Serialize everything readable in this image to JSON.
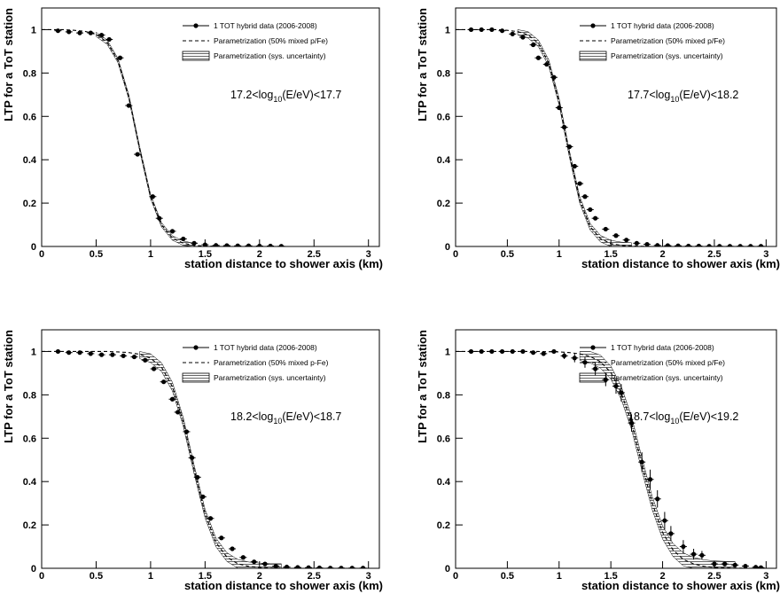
{
  "chart_data": [
    {
      "type": "line",
      "xlabel": "station distance to shower axis (km)",
      "ylabel": "LTP for a ToT station",
      "xlim": [
        0,
        3.1
      ],
      "ylim": [
        0,
        1.1
      ],
      "xticks": [
        0,
        0.5,
        1,
        1.5,
        2,
        2.5,
        3
      ],
      "yticks": [
        0,
        0.2,
        0.4,
        0.6,
        0.8,
        1
      ],
      "legend": "top-right",
      "annotation": {
        "pre": "17.2<log",
        "sub": "10",
        "post": "(E/eV)<17.7"
      },
      "series": [
        {
          "name": "1 TOT hybrid data (2006-2008)",
          "style": "markers",
          "color": "#000000",
          "x": [
            0.15,
            0.25,
            0.35,
            0.45,
            0.55,
            0.62,
            0.72,
            0.8,
            0.88,
            1.02,
            1.08,
            1.2,
            1.3,
            1.4,
            1.5,
            1.6,
            1.7,
            1.8,
            1.9,
            2.0,
            2.1,
            2.2
          ],
          "values": [
            0.995,
            0.99,
            0.985,
            0.985,
            0.975,
            0.955,
            0.87,
            0.65,
            0.425,
            0.23,
            0.13,
            0.07,
            0.035,
            0.015,
            0.008,
            0.005,
            0.004,
            0.003,
            0.003,
            0.002,
            0.002,
            0.001
          ]
        },
        {
          "name": "Parametrization (50% mixed p/Fe)",
          "style": "dashed",
          "color": "#000000",
          "x": [
            0,
            0.1,
            0.2,
            0.3,
            0.4,
            0.5,
            0.6,
            0.7,
            0.8,
            0.9,
            1.0,
            1.1,
            1.2,
            1.3,
            1.4,
            1.5,
            1.6,
            1.7,
            1.8,
            1.9,
            2.0,
            2.1,
            2.2,
            2.3,
            2.4,
            2.5,
            2.6,
            2.7,
            2.8,
            2.9,
            3.0
          ],
          "values": [
            1,
            1,
            1,
            0.997,
            0.992,
            0.978,
            0.943,
            0.858,
            0.69,
            0.45,
            0.23,
            0.1,
            0.039,
            0.015,
            0.005,
            0.002,
            0.001,
            0,
            0,
            0,
            0,
            0,
            0,
            0,
            0,
            0,
            0,
            0,
            0,
            0,
            0
          ]
        },
        {
          "name": "Parametrization (sys. uncertainty)",
          "style": "hatched",
          "color": "#000000",
          "x": [
            0.5,
            0.6,
            0.7,
            0.8,
            0.9,
            1.0,
            1.1,
            1.2,
            1.3,
            1.4
          ],
          "lower": [
            0.968,
            0.933,
            0.848,
            0.68,
            0.44,
            0.22,
            0.09,
            0.029,
            0.005,
            0
          ],
          "upper": [
            0.988,
            0.953,
            0.868,
            0.7,
            0.46,
            0.24,
            0.11,
            0.049,
            0.025,
            0.015
          ]
        }
      ]
    },
    {
      "type": "line",
      "xlabel": "station distance to shower axis (km)",
      "ylabel": "LTP for a ToT station",
      "xlim": [
        0,
        3.1
      ],
      "ylim": [
        0,
        1.1
      ],
      "xticks": [
        0,
        0.5,
        1,
        1.5,
        2,
        2.5,
        3
      ],
      "yticks": [
        0,
        0.2,
        0.4,
        0.6,
        0.8,
        1
      ],
      "legend": "top-right",
      "annotation": {
        "pre": "17.7<log",
        "sub": "10",
        "post": "(E/eV)<18.2"
      },
      "series": [
        {
          "name": "1 TOT hybrid data (2006-2008)",
          "style": "markers",
          "color": "#000000",
          "x": [
            0.15,
            0.25,
            0.35,
            0.45,
            0.55,
            0.65,
            0.75,
            0.8,
            0.88,
            0.95,
            1.0,
            1.05,
            1.1,
            1.15,
            1.2,
            1.25,
            1.3,
            1.35,
            1.45,
            1.55,
            1.65,
            1.75,
            1.85,
            1.95,
            2.05,
            2.15,
            2.25,
            2.35,
            2.45,
            2.55,
            2.65,
            2.75,
            2.85,
            2.95
          ],
          "values": [
            1,
            1,
            1,
            0.995,
            0.98,
            0.965,
            0.93,
            0.87,
            0.84,
            0.78,
            0.64,
            0.55,
            0.46,
            0.37,
            0.29,
            0.23,
            0.17,
            0.13,
            0.08,
            0.05,
            0.03,
            0.015,
            0.01,
            0.005,
            0.004,
            0.003,
            0.002,
            0.002,
            0.001,
            0.001,
            0.001,
            0.001,
            0.001,
            0.001
          ]
        },
        {
          "name": "Parametrization (50% mixed p/Fe)",
          "style": "dashed",
          "color": "#000000",
          "x": [
            0,
            0.1,
            0.2,
            0.3,
            0.4,
            0.5,
            0.6,
            0.7,
            0.8,
            0.9,
            1.0,
            1.1,
            1.2,
            1.3,
            1.4,
            1.5,
            1.6,
            1.7,
            1.8,
            1.9,
            2.0,
            2.1,
            2.2,
            2.3,
            2.4,
            2.5,
            2.6,
            2.7,
            2.8,
            2.9,
            3.0
          ],
          "values": [
            1,
            1,
            1,
            1,
            1,
            0.997,
            0.991,
            0.976,
            0.937,
            0.846,
            0.668,
            0.426,
            0.214,
            0.091,
            0.036,
            0.013,
            0.005,
            0.002,
            0.001,
            0,
            0,
            0,
            0,
            0,
            0,
            0,
            0,
            0,
            0,
            0,
            0
          ]
        },
        {
          "name": "Parametrization (sys. uncertainty)",
          "style": "hatched",
          "color": "#000000",
          "x": [
            0.6,
            0.7,
            0.8,
            0.9,
            1.0,
            1.1,
            1.2,
            1.3,
            1.4,
            1.5,
            1.6,
            1.7
          ],
          "lower": [
            0.976,
            0.961,
            0.922,
            0.831,
            0.653,
            0.411,
            0.199,
            0.076,
            0.021,
            0,
            0,
            0
          ],
          "upper": [
            1,
            0.991,
            0.952,
            0.861,
            0.683,
            0.441,
            0.229,
            0.106,
            0.051,
            0.028,
            0.02,
            0.017
          ]
        }
      ]
    },
    {
      "type": "line",
      "xlabel": "station distance to shower axis (km)",
      "ylabel": "LTP for a ToT station",
      "xlim": [
        0,
        3.1
      ],
      "ylim": [
        0,
        1.1
      ],
      "xticks": [
        0,
        0.5,
        1,
        1.5,
        2,
        2.5,
        3
      ],
      "yticks": [
        0,
        0.2,
        0.4,
        0.6,
        0.8,
        1
      ],
      "legend": "top-right",
      "annotation": {
        "pre": "18.2<log",
        "sub": "10",
        "post": "(E/eV)<18.7"
      },
      "series": [
        {
          "name": "1 TOT hybrid data (2006-2008)",
          "style": "markers",
          "color": "#000000",
          "x": [
            0.15,
            0.25,
            0.35,
            0.45,
            0.55,
            0.65,
            0.75,
            0.85,
            0.95,
            1.03,
            1.12,
            1.2,
            1.25,
            1.33,
            1.38,
            1.43,
            1.48,
            1.55,
            1.65,
            1.75,
            1.85,
            1.95,
            2.05,
            2.15,
            2.25,
            2.35,
            2.45,
            2.55,
            2.65,
            2.75,
            2.85,
            2.95
          ],
          "values": [
            1,
            0.995,
            0.995,
            0.99,
            0.985,
            0.985,
            0.98,
            0.975,
            0.96,
            0.92,
            0.86,
            0.78,
            0.72,
            0.63,
            0.51,
            0.42,
            0.33,
            0.23,
            0.14,
            0.09,
            0.05,
            0.03,
            0.02,
            0.01,
            0.006,
            0.004,
            0.003,
            0.002,
            0.001,
            0.001,
            0.001,
            0.001
          ]
        },
        {
          "name": "Parametrization (50% mixed p-Fe)",
          "style": "dashed",
          "color": "#000000",
          "x": [
            0,
            0.1,
            0.2,
            0.3,
            0.4,
            0.5,
            0.6,
            0.7,
            0.8,
            0.9,
            1.0,
            1.1,
            1.2,
            1.3,
            1.4,
            1.5,
            1.6,
            1.7,
            1.8,
            1.9,
            2.0,
            2.1,
            2.2,
            2.3,
            2.4,
            2.5,
            2.6,
            2.7,
            2.8,
            2.9,
            3.0
          ],
          "values": [
            1,
            1,
            1,
            1,
            1,
            1,
            1,
            0.998,
            0.995,
            0.987,
            0.969,
            0.928,
            0.838,
            0.675,
            0.455,
            0.252,
            0.119,
            0.052,
            0.021,
            0.009,
            0.004,
            0.001,
            0.001,
            0,
            0,
            0,
            0,
            0,
            0,
            0,
            0
          ]
        },
        {
          "name": "Parametrization (sys. uncertainty)",
          "style": "hatched",
          "color": "#000000",
          "x": [
            0.9,
            1.0,
            1.1,
            1.2,
            1.3,
            1.4,
            1.5,
            1.6,
            1.7,
            1.8,
            1.9,
            2.0,
            2.1,
            2.2
          ],
          "lower": [
            0.967,
            0.949,
            0.908,
            0.818,
            0.655,
            0.435,
            0.232,
            0.099,
            0.032,
            0.001,
            0,
            0,
            0,
            0
          ],
          "upper": [
            1,
            0.989,
            0.948,
            0.858,
            0.695,
            0.475,
            0.272,
            0.139,
            0.072,
            0.041,
            0.029,
            0.024,
            0.021,
            0.021
          ]
        }
      ]
    },
    {
      "type": "line",
      "xlabel": "station distance to shower axis (km)",
      "ylabel": "LTP for a ToT station",
      "xlim": [
        0,
        3.1
      ],
      "ylim": [
        0,
        1.1
      ],
      "xticks": [
        0,
        0.5,
        1,
        1.5,
        2,
        2.5,
        3
      ],
      "yticks": [
        0,
        0.2,
        0.4,
        0.6,
        0.8,
        1
      ],
      "legend": "top-right",
      "annotation": {
        "pre": "18.7<log",
        "sub": "10",
        "post": "(E/eV)<19.2"
      },
      "series": [
        {
          "name": "1 TOT hybrid data (2006-2008)",
          "style": "markers",
          "color": "#000000",
          "x": [
            0.15,
            0.25,
            0.35,
            0.45,
            0.55,
            0.65,
            0.75,
            0.85,
            0.95,
            1.05,
            1.15,
            1.25,
            1.35,
            1.45,
            1.55,
            1.6,
            1.7,
            1.8,
            1.88,
            1.95,
            2.02,
            2.08,
            2.2,
            2.3,
            2.38,
            2.5,
            2.6,
            2.7,
            2.8,
            2.9,
            2.95
          ],
          "values": [
            1,
            1,
            1,
            1,
            1,
            1,
            0.995,
            0.99,
            1,
            0.98,
            0.97,
            0.95,
            0.92,
            0.87,
            0.84,
            0.81,
            0.67,
            0.49,
            0.41,
            0.32,
            0.22,
            0.16,
            0.1,
            0.065,
            0.06,
            0.02,
            0.02,
            0.015,
            0.01,
            0.005,
            0.003
          ],
          "errors": [
            0.005,
            0.005,
            0.005,
            0.005,
            0.005,
            0.005,
            0.008,
            0.01,
            0.01,
            0.015,
            0.02,
            0.025,
            0.03,
            0.03,
            0.035,
            0.04,
            0.04,
            0.045,
            0.045,
            0.04,
            0.04,
            0.035,
            0.03,
            0.025,
            0.02,
            0.015,
            0.01,
            0.01,
            0.008,
            0.005,
            0.005
          ]
        },
        {
          "name": "Parametrization (50% mixed p/Fe)",
          "style": "dashed",
          "color": "#000000",
          "x": [
            0,
            0.1,
            0.2,
            0.3,
            0.4,
            0.5,
            0.6,
            0.7,
            0.8,
            0.9,
            1.0,
            1.1,
            1.2,
            1.3,
            1.4,
            1.5,
            1.6,
            1.7,
            1.8,
            1.9,
            2.0,
            2.1,
            2.2,
            2.3,
            2.4,
            2.5,
            2.6,
            2.7,
            2.8,
            2.9,
            3.0
          ],
          "values": [
            1,
            1,
            1,
            1,
            1,
            1,
            1,
            1,
            1,
            0.999,
            0.998,
            0.995,
            0.989,
            0.977,
            0.953,
            0.903,
            0.81,
            0.67,
            0.48,
            0.3,
            0.165,
            0.085,
            0.041,
            0.02,
            0.009,
            0.004,
            0.002,
            0.001,
            0,
            0,
            0
          ]
        },
        {
          "name": "Parametrization (sys. uncertainty)",
          "style": "hatched",
          "color": "#000000",
          "x": [
            1.2,
            1.3,
            1.4,
            1.5,
            1.6,
            1.7,
            1.8,
            1.9,
            2.0,
            2.1,
            2.2,
            2.3,
            2.4,
            2.5,
            2.6,
            2.7
          ],
          "lower": [
            0.959,
            0.947,
            0.923,
            0.873,
            0.78,
            0.64,
            0.45,
            0.27,
            0.135,
            0.055,
            0.011,
            0,
            0,
            0,
            0,
            0
          ],
          "upper": [
            1,
            1,
            0.983,
            0.933,
            0.84,
            0.7,
            0.51,
            0.33,
            0.195,
            0.115,
            0.071,
            0.05,
            0.039,
            0.034,
            0.032,
            0.031
          ]
        }
      ]
    }
  ]
}
